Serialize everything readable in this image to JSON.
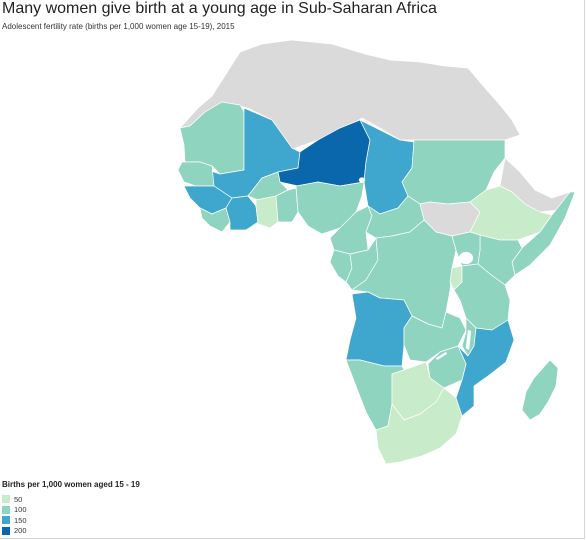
{
  "title": "Many women give birth at a young age in Sub-Saharan Africa",
  "subtitle": "Adolescent fertility rate (births per 1,000 women age 15-19), 2015",
  "legend": {
    "title": "Births per 1,000 women aged 15 - 19",
    "items": [
      {
        "label": "50",
        "color": "#c8ebc9"
      },
      {
        "label": "100",
        "color": "#8ed4bf"
      },
      {
        "label": "150",
        "color": "#3fa7ce"
      },
      {
        "label": "200",
        "color": "#0b67ac"
      }
    ]
  },
  "colors": {
    "no_data": "#dadada",
    "border": "#ffffff",
    "class_50": "#c8ebc9",
    "class_100": "#8ed4bf",
    "class_150": "#3fa7ce",
    "class_200": "#0b67ac"
  }
}
